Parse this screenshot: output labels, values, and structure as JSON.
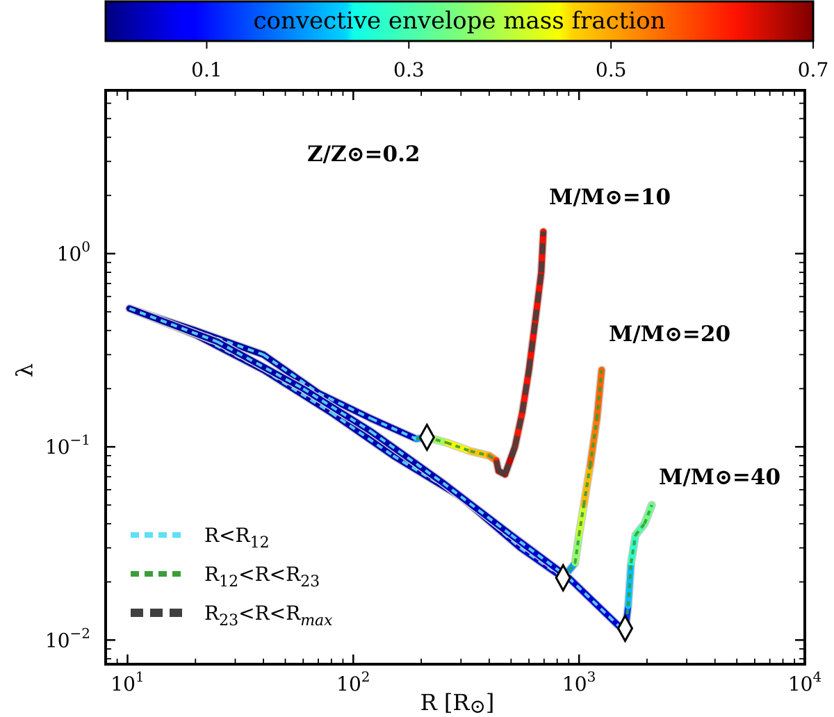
{
  "chart_data": {
    "type": "line",
    "xscale": "log",
    "yscale": "log",
    "xlim": [
      8,
      10000
    ],
    "ylim": [
      0.0075,
      7
    ],
    "xlabel": "R [R⊙]",
    "ylabel": "λ",
    "x_ticks": [
      {
        "value": 10,
        "label": "10",
        "exp": "1"
      },
      {
        "value": 100,
        "label": "10",
        "exp": "2"
      },
      {
        "value": 1000,
        "label": "10",
        "exp": "3"
      },
      {
        "value": 10000,
        "label": "10",
        "exp": "4"
      }
    ],
    "y_ticks": [
      {
        "value": 0.01,
        "label": "10",
        "exp": "−2"
      },
      {
        "value": 0.1,
        "label": "10",
        "exp": "−1"
      },
      {
        "value": 1,
        "label": "10",
        "exp": "0"
      }
    ],
    "colorbar": {
      "label": "convective envelope mass fraction",
      "range": [
        0.0,
        0.7
      ],
      "ticks": [
        {
          "value": 0.1,
          "label": "0.1"
        },
        {
          "value": 0.3,
          "label": "0.3"
        },
        {
          "value": 0.5,
          "label": "0.5"
        },
        {
          "value": 0.7,
          "label": "0.7"
        }
      ]
    },
    "metallicity_label": "Z/Z⊙=0.2",
    "series": [
      {
        "name": "M/M⊙=10",
        "points": [
          {
            "x": 10.2,
            "y": 0.52,
            "f": 0.02
          },
          {
            "x": 20,
            "y": 0.4,
            "f": 0.02
          },
          {
            "x": 40,
            "y": 0.3,
            "f": 0.02
          },
          {
            "x": 70,
            "y": 0.19,
            "f": 0.03
          },
          {
            "x": 120,
            "y": 0.14,
            "f": 0.03
          },
          {
            "x": 190,
            "y": 0.11,
            "f": 0.04
          },
          {
            "x": 212,
            "y": 0.112,
            "f": 0.36
          },
          {
            "x": 260,
            "y": 0.105,
            "f": 0.4
          },
          {
            "x": 330,
            "y": 0.095,
            "f": 0.5
          },
          {
            "x": 400,
            "y": 0.09,
            "f": 0.45
          },
          {
            "x": 430,
            "y": 0.085,
            "f": 0.6
          },
          {
            "x": 440,
            "y": 0.075,
            "f": 0.62
          },
          {
            "x": 470,
            "y": 0.072,
            "f": 0.7
          },
          {
            "x": 520,
            "y": 0.1,
            "f": 0.62
          },
          {
            "x": 560,
            "y": 0.15,
            "f": 0.62
          },
          {
            "x": 600,
            "y": 0.25,
            "f": 0.63
          },
          {
            "x": 640,
            "y": 0.45,
            "f": 0.63
          },
          {
            "x": 680,
            "y": 0.8,
            "f": 0.63
          },
          {
            "x": 695,
            "y": 1.3,
            "f": 0.63
          }
        ],
        "label": "M/M⊙=10"
      },
      {
        "name": "M/M⊙=20",
        "points": [
          {
            "x": 10.2,
            "y": 0.52,
            "f": 0.02
          },
          {
            "x": 20,
            "y": 0.38,
            "f": 0.02
          },
          {
            "x": 40,
            "y": 0.25,
            "f": 0.02
          },
          {
            "x": 80,
            "y": 0.15,
            "f": 0.03
          },
          {
            "x": 150,
            "y": 0.09,
            "f": 0.03
          },
          {
            "x": 300,
            "y": 0.055,
            "f": 0.03
          },
          {
            "x": 550,
            "y": 0.03,
            "f": 0.04
          },
          {
            "x": 850,
            "y": 0.021,
            "f": 0.05
          },
          {
            "x": 960,
            "y": 0.025,
            "f": 0.35
          },
          {
            "x": 1000,
            "y": 0.035,
            "f": 0.38
          },
          {
            "x": 1050,
            "y": 0.05,
            "f": 0.45
          },
          {
            "x": 1120,
            "y": 0.08,
            "f": 0.52
          },
          {
            "x": 1200,
            "y": 0.14,
            "f": 0.55
          },
          {
            "x": 1260,
            "y": 0.25,
            "f": 0.56
          }
        ],
        "label": "M/M⊙=20"
      },
      {
        "name": "M/M⊙=40",
        "points": [
          {
            "x": 10.2,
            "y": 0.52,
            "f": 0.02
          },
          {
            "x": 25,
            "y": 0.35,
            "f": 0.02
          },
          {
            "x": 60,
            "y": 0.2,
            "f": 0.03
          },
          {
            "x": 120,
            "y": 0.12,
            "f": 0.03
          },
          {
            "x": 250,
            "y": 0.065,
            "f": 0.03
          },
          {
            "x": 500,
            "y": 0.035,
            "f": 0.04
          },
          {
            "x": 900,
            "y": 0.021,
            "f": 0.05
          },
          {
            "x": 1600,
            "y": 0.011,
            "f": 0.05
          },
          {
            "x": 1650,
            "y": 0.015,
            "f": 0.2
          },
          {
            "x": 1700,
            "y": 0.025,
            "f": 0.25
          },
          {
            "x": 1780,
            "y": 0.035,
            "f": 0.3
          },
          {
            "x": 1950,
            "y": 0.04,
            "f": 0.32
          },
          {
            "x": 2100,
            "y": 0.05,
            "f": 0.35
          }
        ],
        "label": "M/M⊙=40"
      }
    ],
    "markers": [
      {
        "x": 212,
        "y": 0.112
      },
      {
        "x": 850,
        "y": 0.021
      },
      {
        "x": 1600,
        "y": 0.0115
      }
    ],
    "legend": {
      "placement": "lower-left",
      "entries": [
        {
          "label": "R<R12",
          "text": "R<R",
          "sub": "12",
          "tail": "",
          "tail_sub": "",
          "color": "#5ee0f5"
        },
        {
          "label": "R12<R<R23",
          "text": "R",
          "sub": "12",
          "tail": "<R<R",
          "tail_sub": "23",
          "color": "#3a9e3a"
        },
        {
          "label": "R23<R<Rmax",
          "text": "R",
          "sub": "23",
          "tail": "<R<R",
          "tail_sub": "max",
          "color": "#404040"
        }
      ]
    },
    "colors": {
      "track_outline": "#cccccc",
      "marker": "#ffffff",
      "regime1": "#5ee0f5",
      "regime2": "#3a9e3a",
      "regime3": "#404040"
    }
  }
}
